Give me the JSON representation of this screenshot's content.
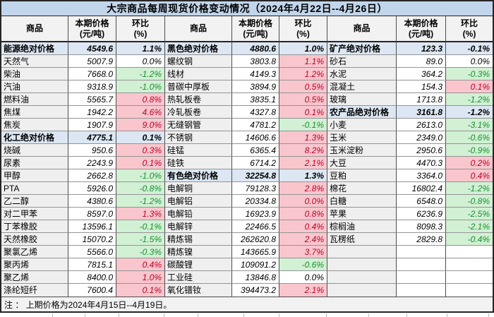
{
  "chart_data": {
    "type": "table",
    "title": "大宗商品每周现货价格变动情况（2024年4月22日--4月26日）",
    "note": "注 ： 上期价格为2024年4月15日--4月19日。",
    "column_headers": {
      "commodity": "商品",
      "price": "本期价格",
      "price_unit": "(元/吨)",
      "pct": "环比",
      "pct_unit": "(%)"
    },
    "colors": {
      "title_bg": "#c2d6eb",
      "header_bg": "#f2f2f2",
      "category_row_bg": "#dce7f3",
      "label_col_bg": "#efefef",
      "increase_bg": "#f9c6ce",
      "increase_text": "#c00023",
      "decrease_bg": "#d2f0d4",
      "decrease_text": "#179030",
      "border_dark": "#262626"
    },
    "groups": [
      {
        "rows": [
          {
            "name": "能源绝对价格",
            "price": "4549.6",
            "pct": "1.1%",
            "style": "category"
          },
          {
            "name": "天然气",
            "price": "5007.9",
            "pct": "0.0%",
            "style": "flat"
          },
          {
            "name": "柴油",
            "price": "7668.0",
            "pct": "-1.2%",
            "style": "down"
          },
          {
            "name": "汽油",
            "price": "9318.9",
            "pct": "-1.0%",
            "style": "down"
          },
          {
            "name": "燃料油",
            "price": "5565.7",
            "pct": "0.8%",
            "style": "up"
          },
          {
            "name": "焦煤",
            "price": "1942.2",
            "pct": "4.6%",
            "style": "up"
          },
          {
            "name": "焦炭",
            "price": "1907.9",
            "pct": "9.0%",
            "style": "up"
          },
          {
            "name": "化工绝对价格",
            "price": "4775.1",
            "pct": "0.1%",
            "style": "category"
          },
          {
            "name": "烧碱",
            "price": "950.6",
            "pct": "0.3%",
            "style": "up"
          },
          {
            "name": "尿素",
            "price": "2243.9",
            "pct": "0.1%",
            "style": "up"
          },
          {
            "name": "甲醇",
            "price": "2662.8",
            "pct": "-1.0%",
            "style": "down"
          },
          {
            "name": "PTA",
            "price": "5926.0",
            "pct": "-0.8%",
            "style": "down"
          },
          {
            "name": "乙二醇",
            "price": "4380.6",
            "pct": "-1.2%",
            "style": "down"
          },
          {
            "name": "对二甲苯",
            "price": "8597.0",
            "pct": "1.3%",
            "style": "up"
          },
          {
            "name": "丁苯橡胶",
            "price": "13596.1",
            "pct": "-0.1%",
            "style": "down"
          },
          {
            "name": "天然橡胶",
            "price": "15070.2",
            "pct": "-1.5%",
            "style": "down"
          },
          {
            "name": "聚氯乙烯",
            "price": "5566.0",
            "pct": "-0.3%",
            "style": "down"
          },
          {
            "name": "聚丙烯",
            "price": "7815.1",
            "pct": "0.4%",
            "style": "up"
          },
          {
            "name": "聚乙烯",
            "price": "8400.0",
            "pct": "1.0%",
            "style": "up"
          },
          {
            "name": "涤纶短纤",
            "price": "7600.4",
            "pct": "0.1%",
            "style": "up"
          }
        ]
      },
      {
        "rows": [
          {
            "name": "黑色绝对价格",
            "price": "4880.6",
            "pct": "1.0%",
            "style": "category"
          },
          {
            "name": "螺纹钢",
            "price": "3803.8",
            "pct": "1.1%",
            "style": "up"
          },
          {
            "name": "线材",
            "price": "4149.3",
            "pct": "1.2%",
            "style": "up"
          },
          {
            "name": "普碳中厚板",
            "price": "3894.9",
            "pct": "0.5%",
            "style": "up"
          },
          {
            "name": "热轧板卷",
            "price": "3835.1",
            "pct": "0.5%",
            "style": "up"
          },
          {
            "name": "冷轧板卷",
            "price": "4327.8",
            "pct": "0.1%",
            "style": "up"
          },
          {
            "name": "无缝钢管",
            "price": "4781.2",
            "pct": "-0.1%",
            "style": "down"
          },
          {
            "name": "不锈钢",
            "price": "14606.6",
            "pct": "1.3%",
            "style": "up"
          },
          {
            "name": "硅锰",
            "price": "6365.4",
            "pct": "8.2%",
            "style": "up"
          },
          {
            "name": "硅铁",
            "price": "6714.2",
            "pct": "2.1%",
            "style": "up"
          },
          {
            "name": "有色绝对价格",
            "price": "32254.8",
            "pct": "1.3%",
            "style": "category"
          },
          {
            "name": "电解铜",
            "price": "79128.3",
            "pct": "2.8%",
            "style": "up"
          },
          {
            "name": "电解铝",
            "price": "20334.8",
            "pct": "0.0%",
            "style": "up"
          },
          {
            "name": "电解铅",
            "price": "16923.9",
            "pct": "0.8%",
            "style": "up"
          },
          {
            "name": "电解锌",
            "price": "22466.5",
            "pct": "0.4%",
            "style": "up"
          },
          {
            "name": "精炼锡",
            "price": "262620.8",
            "pct": "2.4%",
            "style": "up"
          },
          {
            "name": "精炼镍",
            "price": "143665.9",
            "pct": "3.7%",
            "style": "up"
          },
          {
            "name": "碳酸锂",
            "price": "109091.2",
            "pct": "-0.6%",
            "style": "down"
          },
          {
            "name": "工业硅",
            "price": "13846.8",
            "pct": "0.0%",
            "style": "flat"
          },
          {
            "name": "氧化镨钕",
            "price": "394473.2",
            "pct": "2.1%",
            "style": "up"
          }
        ]
      },
      {
        "rows": [
          {
            "name": "矿产绝对价格",
            "price": "123.3",
            "pct": "-0.1%",
            "style": "category"
          },
          {
            "name": "砂石",
            "price": "89.0",
            "pct": "0.0%",
            "style": "flat"
          },
          {
            "name": "水泥",
            "price": "364.2",
            "pct": "-0.3%",
            "style": "down"
          },
          {
            "name": "混凝土",
            "price": "154.3",
            "pct": "0.1%",
            "style": "up"
          },
          {
            "name": "玻璃",
            "price": "1713.8",
            "pct": "-1.2%",
            "style": "down"
          },
          {
            "name": "农产品绝对价格",
            "price": "3161.8",
            "pct": "-1.2%",
            "style": "category"
          },
          {
            "name": "小麦",
            "price": "2613.0",
            "pct": "-3.1%",
            "style": "down"
          },
          {
            "name": "玉米",
            "price": "2349.0",
            "pct": "-0.6%",
            "style": "down"
          },
          {
            "name": "玉米淀粉",
            "price": "2950.6",
            "pct": "-0.9%",
            "style": "down"
          },
          {
            "name": "大豆",
            "price": "4470.3",
            "pct": "0.2%",
            "style": "up"
          },
          {
            "name": "豆粕",
            "price": "3364.0",
            "pct": "0.4%",
            "style": "up"
          },
          {
            "name": "棉花",
            "price": "16802.4",
            "pct": "-1.2%",
            "style": "down"
          },
          {
            "name": "白糖",
            "price": "6548.0",
            "pct": "-0.8%",
            "style": "down"
          },
          {
            "name": "苹果",
            "price": "6236.9",
            "pct": "-2.5%",
            "style": "down"
          },
          {
            "name": "棕榈油",
            "price": "8098.3",
            "pct": "-2.1%",
            "style": "down"
          },
          {
            "name": "瓦楞纸",
            "price": "2829.8",
            "pct": "-0.4%",
            "style": "down"
          },
          {
            "name": "",
            "price": "",
            "pct": "",
            "style": "empty"
          },
          {
            "name": "",
            "price": "",
            "pct": "",
            "style": "empty"
          },
          {
            "name": "",
            "price": "",
            "pct": "",
            "style": "empty"
          },
          {
            "name": "",
            "price": "",
            "pct": "",
            "style": "empty"
          }
        ]
      }
    ]
  }
}
